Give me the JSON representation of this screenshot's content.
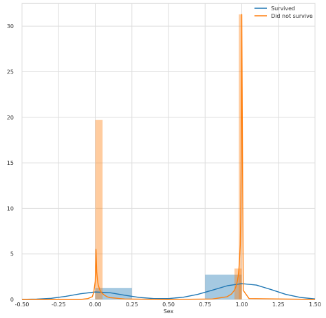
{
  "chart_data": {
    "type": "histogram-kde",
    "title": "",
    "xlabel": "Sex",
    "ylabel": "",
    "xlim": [
      -0.5,
      1.5
    ],
    "ylim": [
      0,
      32.5
    ],
    "xticks": [
      -0.5,
      -0.25,
      0.0,
      0.25,
      0.5,
      0.75,
      1.0,
      1.25,
      1.5
    ],
    "xtick_labels": [
      "-0.50",
      "-0.25",
      "0.00",
      "0.25",
      "0.50",
      "0.75",
      "1.00",
      "1.25",
      "1.50"
    ],
    "yticks": [
      0,
      5,
      10,
      15,
      20,
      25,
      30
    ],
    "ytick_labels": [
      "0",
      "5",
      "10",
      "15",
      "20",
      "25",
      "30"
    ],
    "grid": true,
    "legend_position": "top-right",
    "series": [
      {
        "name": "Survived",
        "color": "#1f77b4",
        "hist_bins": [
          {
            "x0": 0.0,
            "x1": 0.25,
            "density": 1.27
          },
          {
            "x0": 0.75,
            "x1": 1.0,
            "density": 2.73
          }
        ],
        "kde": {
          "x": [
            -0.5,
            -0.4,
            -0.3,
            -0.2,
            -0.1,
            0.0,
            0.1,
            0.2,
            0.3,
            0.4,
            0.5,
            0.6,
            0.7,
            0.8,
            0.9,
            1.0,
            1.1,
            1.2,
            1.3,
            1.4,
            1.5
          ],
          "y": [
            0.01,
            0.04,
            0.13,
            0.34,
            0.63,
            0.82,
            0.74,
            0.47,
            0.22,
            0.1,
            0.1,
            0.24,
            0.56,
            1.02,
            1.5,
            1.74,
            1.58,
            1.09,
            0.56,
            0.22,
            0.06
          ]
        }
      },
      {
        "name": "Did not survive",
        "color": "#ff7f0e",
        "hist_bins": [
          {
            "x0": 0.0,
            "x1": 0.05,
            "density": 19.7
          },
          {
            "x0": 0.95,
            "x1": 1.0,
            "density": 3.4
          },
          {
            "x0": 0.98,
            "x1": 1.0,
            "density": 31.3
          }
        ],
        "kde": {
          "x": [
            -0.5,
            -0.1,
            -0.05,
            -0.02,
            -0.01,
            0.0,
            0.005,
            0.01,
            0.015,
            0.02,
            0.03,
            0.04,
            0.06,
            0.08,
            0.1,
            0.2,
            0.5,
            0.8,
            0.9,
            0.93,
            0.95,
            0.96,
            0.97,
            0.975,
            0.98,
            0.985,
            0.99,
            0.993,
            0.996,
            1.0,
            1.01,
            1.05,
            1.5
          ],
          "y": [
            0.0,
            0.0,
            0.1,
            0.3,
            0.8,
            2.0,
            5.5,
            3.0,
            2.2,
            1.6,
            1.1,
            0.8,
            0.5,
            0.3,
            0.2,
            0.05,
            0.0,
            0.05,
            0.3,
            0.6,
            1.0,
            1.4,
            2.0,
            2.5,
            3.2,
            4.5,
            6.0,
            9.0,
            15.0,
            31.3,
            1.0,
            0.1,
            0.0
          ]
        }
      }
    ]
  }
}
